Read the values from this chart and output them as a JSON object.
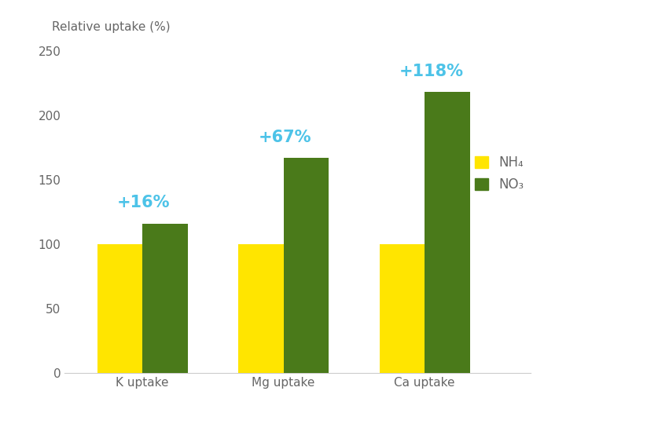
{
  "categories": [
    "K uptake",
    "Mg uptake",
    "Ca uptake"
  ],
  "nh4_values": [
    100,
    100,
    100
  ],
  "no3_values": [
    116,
    167,
    218
  ],
  "annotations": [
    "+16%",
    "+67%",
    "+118%"
  ],
  "nh4_color": "#FFE500",
  "no3_color": "#4A7A1A",
  "annotation_color": "#4DC3E8",
  "top_label": "Relative uptake (%)",
  "ylim": [
    0,
    250
  ],
  "yticks": [
    0,
    50,
    100,
    150,
    200,
    250
  ],
  "legend_nh4": "NH₄",
  "legend_no3": "NO₃",
  "bar_width": 0.32,
  "background_color": "#ffffff",
  "annotation_fontsize": 15,
  "axis_fontsize": 11,
  "legend_fontsize": 12,
  "label_color": "#666666",
  "tick_color": "#666666"
}
